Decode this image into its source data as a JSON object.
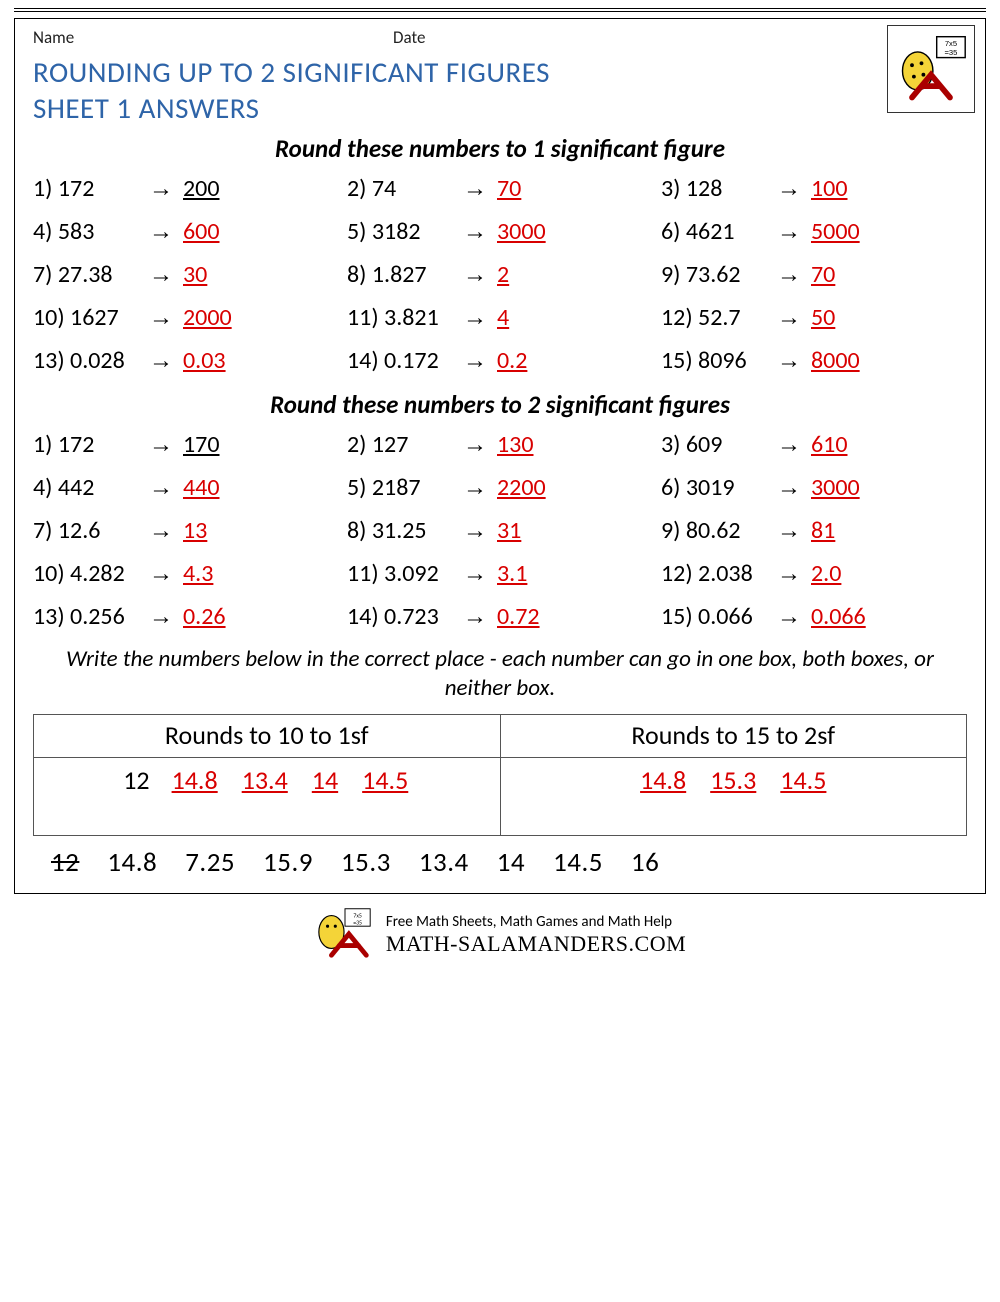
{
  "header": {
    "name_label": "Name",
    "date_label": "Date"
  },
  "title_line1": "ROUNDING UP TO 2 SIGNIFICANT FIGURES",
  "title_line2": "SHEET 1 ANSWERS",
  "section1": {
    "heading": "Round these numbers to 1 significant figure",
    "rows": [
      {
        "n": "1",
        "q": "172",
        "a": "200",
        "black": true
      },
      {
        "n": "2",
        "q": "74",
        "a": "70"
      },
      {
        "n": "3",
        "q": "128",
        "a": "100"
      },
      {
        "n": "4",
        "q": "583",
        "a": "600"
      },
      {
        "n": "5",
        "q": "3182",
        "a": "3000"
      },
      {
        "n": "6",
        "q": "4621",
        "a": "5000"
      },
      {
        "n": "7",
        "q": "27.38",
        "a": "30"
      },
      {
        "n": "8",
        "q": "1.827",
        "a": "2"
      },
      {
        "n": "9",
        "q": "73.62",
        "a": "70"
      },
      {
        "n": "10",
        "q": "1627",
        "a": "2000"
      },
      {
        "n": "11",
        "q": "3.821",
        "a": "4"
      },
      {
        "n": "12",
        "q": "52.7",
        "a": "50"
      },
      {
        "n": "13",
        "q": "0.028",
        "a": "0.03"
      },
      {
        "n": "14",
        "q": "0.172",
        "a": "0.2"
      },
      {
        "n": "15",
        "q": "8096",
        "a": "8000"
      }
    ]
  },
  "section2": {
    "heading": "Round these numbers to 2 significant figures",
    "rows": [
      {
        "n": "1",
        "q": "172",
        "a": "170",
        "black": true
      },
      {
        "n": "2",
        "q": "127",
        "a": "130"
      },
      {
        "n": "3",
        "q": "609",
        "a": "610"
      },
      {
        "n": "4",
        "q": "442",
        "a": "440"
      },
      {
        "n": "5",
        "q": "2187",
        "a": "2200"
      },
      {
        "n": "6",
        "q": "3019",
        "a": "3000"
      },
      {
        "n": "7",
        "q": "12.6",
        "a": "13"
      },
      {
        "n": "8",
        "q": "31.25",
        "a": "31"
      },
      {
        "n": "9",
        "q": "80.62",
        "a": "81"
      },
      {
        "n": "10",
        "q": "4.282",
        "a": "4.3"
      },
      {
        "n": "11",
        "q": "3.092",
        "a": "3.1"
      },
      {
        "n": "12",
        "q": "2.038",
        "a": "2.0"
      },
      {
        "n": "13",
        "q": "0.256",
        "a": "0.26"
      },
      {
        "n": "14",
        "q": "0.723",
        "a": "0.72"
      },
      {
        "n": "15",
        "q": "0.066",
        "a": "0.066"
      }
    ]
  },
  "sorting": {
    "instruction": "Write the numbers below in the correct place - each number can go in one box, both boxes, or neither box.",
    "col1_header": "Rounds to 10 to 1sf",
    "col2_header": "Rounds to 15 to 2sf",
    "col1_plain": [
      "12"
    ],
    "col1_answers": [
      "14.8",
      "13.4",
      "14",
      "14.5"
    ],
    "col2_answers": [
      "14.8",
      "15.3",
      "14.5"
    ],
    "pool": [
      {
        "v": "12",
        "struck": true
      },
      {
        "v": "14.8"
      },
      {
        "v": "7.25"
      },
      {
        "v": "15.9"
      },
      {
        "v": "15.3"
      },
      {
        "v": "13.4"
      },
      {
        "v": "14"
      },
      {
        "v": "14.5"
      },
      {
        "v": "16"
      }
    ]
  },
  "footer": {
    "tagline": "Free Math Sheets, Math Games and Math Help",
    "brand": "MATH-SALAMANDERS.COM"
  },
  "arrow": "→",
  "colors": {
    "title": "#2e64a8",
    "answer": "#d80000",
    "text": "#000000",
    "border": "#000000"
  }
}
